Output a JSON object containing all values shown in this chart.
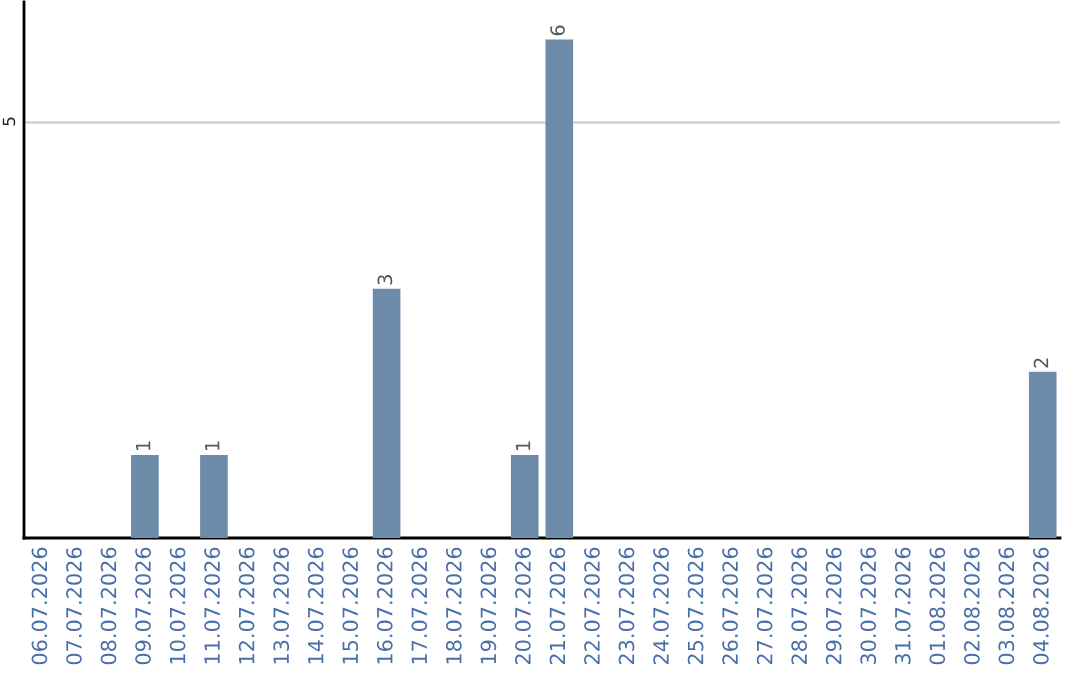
{
  "chart_data": {
    "type": "bar",
    "categories": [
      "06.07.2026",
      "07.07.2026",
      "08.07.2026",
      "09.07.2026",
      "10.07.2026",
      "11.07.2026",
      "12.07.2026",
      "13.07.2026",
      "14.07.2026",
      "15.07.2026",
      "16.07.2026",
      "17.07.2026",
      "18.07.2026",
      "19.07.2026",
      "20.07.2026",
      "21.07.2026",
      "22.07.2026",
      "23.07.2026",
      "24.07.2026",
      "25.07.2026",
      "26.07.2026",
      "27.07.2026",
      "28.07.2026",
      "29.07.2026",
      "30.07.2026",
      "31.07.2026",
      "01.08.2026",
      "02.08.2026",
      "03.08.2026",
      "04.08.2026"
    ],
    "values": [
      0,
      0,
      0,
      1,
      0,
      1,
      0,
      0,
      0,
      0,
      3,
      0,
      0,
      0,
      1,
      6,
      0,
      0,
      0,
      0,
      0,
      0,
      0,
      0,
      0,
      0,
      0,
      0,
      0,
      2
    ],
    "value_labels": [
      null,
      null,
      null,
      "1",
      null,
      "1",
      null,
      null,
      null,
      null,
      "3",
      null,
      null,
      null,
      "1",
      "6",
      null,
      null,
      null,
      null,
      null,
      null,
      null,
      null,
      null,
      null,
      null,
      null,
      null,
      "2"
    ],
    "color": "#6d8caa",
    "ylim": [
      0,
      6.45
    ],
    "yticks": [
      5
    ],
    "grid": "y",
    "legend": false
  }
}
